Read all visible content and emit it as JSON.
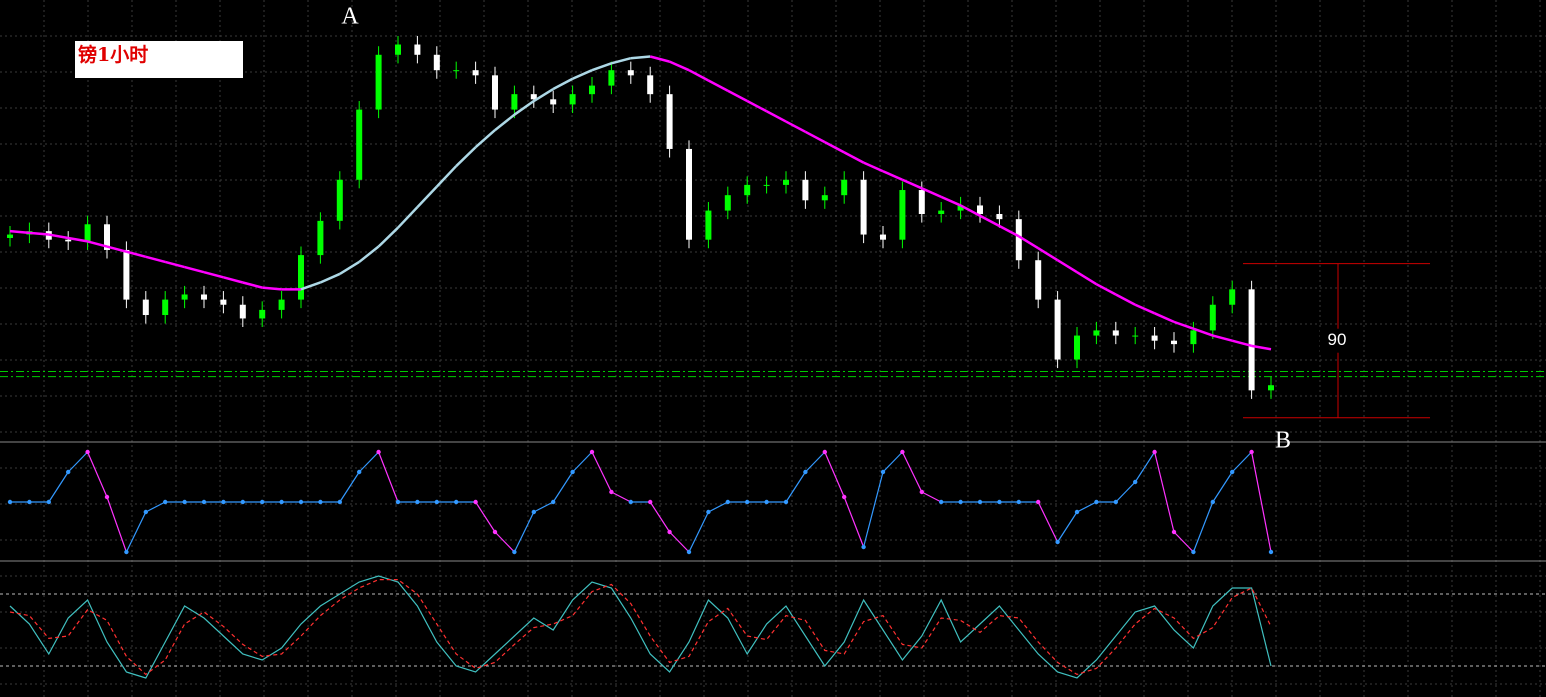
{
  "chart_data": [
    {
      "type": "candlestick",
      "title": "镑1小时",
      "annotations": [
        "A",
        "B"
      ],
      "up_color": "#00ff00",
      "down_color": "#ffffff",
      "ylim": [
        0,
        257
      ],
      "open": [
        118,
        120,
        122,
        117,
        116,
        126,
        111,
        82,
        73,
        82,
        85,
        82,
        79,
        71,
        76,
        82,
        108,
        128,
        152,
        193,
        225,
        231,
        225,
        216,
        216,
        213,
        193,
        202,
        199,
        196,
        202,
        207,
        216,
        213,
        202,
        170,
        117,
        134,
        143,
        149,
        149,
        152,
        140,
        143,
        152,
        120,
        117,
        146,
        132,
        134,
        137,
        132,
        129,
        105,
        82,
        47,
        61,
        64,
        61,
        61,
        58,
        56,
        64,
        79,
        88,
        29
      ],
      "high": [
        125,
        127,
        127,
        122,
        131,
        131,
        116,
        87,
        87,
        90,
        90,
        87,
        84,
        81,
        87,
        113,
        133,
        157,
        198,
        230,
        236,
        236,
        230,
        221,
        221,
        218,
        207,
        207,
        204,
        207,
        212,
        221,
        221,
        218,
        207,
        175,
        139,
        148,
        154,
        154,
        157,
        157,
        148,
        157,
        157,
        125,
        151,
        151,
        139,
        142,
        142,
        137,
        134,
        110,
        87,
        66,
        69,
        69,
        66,
        66,
        63,
        69,
        84,
        93,
        93,
        37
      ],
      "low": [
        113,
        115,
        112,
        111,
        111,
        106,
        77,
        68,
        68,
        77,
        77,
        74,
        66,
        66,
        71,
        77,
        103,
        123,
        147,
        188,
        220,
        220,
        211,
        211,
        208,
        188,
        188,
        194,
        191,
        191,
        197,
        202,
        208,
        197,
        165,
        112,
        112,
        129,
        138,
        144,
        144,
        135,
        135,
        138,
        115,
        112,
        112,
        127,
        127,
        129,
        127,
        124,
        100,
        77,
        42,
        42,
        56,
        56,
        56,
        53,
        51,
        51,
        59,
        74,
        24,
        24
      ],
      "close": [
        120,
        122,
        117,
        116,
        126,
        111,
        82,
        73,
        82,
        85,
        82,
        79,
        71,
        76,
        82,
        108,
        128,
        152,
        193,
        225,
        231,
        225,
        216,
        216,
        213,
        193,
        202,
        199,
        196,
        202,
        207,
        216,
        213,
        202,
        170,
        117,
        134,
        143,
        149,
        149,
        152,
        140,
        143,
        152,
        120,
        117,
        146,
        132,
        134,
        137,
        132,
        129,
        105,
        82,
        47,
        61,
        64,
        61,
        61,
        58,
        56,
        64,
        79,
        88,
        29,
        32
      ],
      "ma": {
        "color": "#ff00ff",
        "up_color": "#add8e6",
        "values": [
          122,
          121,
          120,
          118,
          116,
          113,
          110,
          107,
          104,
          101,
          98,
          95,
          92,
          89,
          88,
          88,
          92,
          97,
          104,
          113,
          124,
          136,
          148,
          160,
          171,
          181,
          190,
          198,
          205,
          211,
          216,
          220,
          223,
          224,
          221,
          216,
          210,
          204,
          198,
          192,
          186,
          180,
          174,
          168,
          162,
          157,
          152,
          147,
          142,
          137,
          131,
          125,
          119,
          112,
          105,
          98,
          91,
          85,
          79,
          74,
          69,
          65,
          61,
          58,
          55,
          53
        ]
      },
      "levels": [
        40,
        37
      ],
      "level_color": "#00cc00",
      "measure": {
        "label": "90",
        "from": 13,
        "to": 103,
        "color": "#cc0000"
      }
    },
    {
      "type": "step",
      "color": "#3399ff",
      "down_color": "#ff33ff",
      "ylim": [
        -110,
        110
      ],
      "values": [
        0,
        0,
        0,
        60,
        100,
        10,
        -100,
        -20,
        0,
        0,
        0,
        0,
        0,
        0,
        0,
        0,
        0,
        0,
        60,
        100,
        0,
        0,
        0,
        0,
        0,
        -60,
        -100,
        -20,
        0,
        60,
        100,
        20,
        0,
        0,
        -60,
        -100,
        -20,
        0,
        0,
        0,
        0,
        60,
        100,
        10,
        -90,
        60,
        100,
        20,
        0,
        0,
        0,
        0,
        0,
        0,
        -80,
        -20,
        0,
        0,
        40,
        100,
        -60,
        -100,
        0,
        60,
        100,
        -100
      ]
    },
    {
      "type": "line",
      "ylim": [
        0,
        100
      ],
      "levels": [
        80,
        20
      ],
      "series": [
        {
          "color": "#40c0c0",
          "values": [
            70,
            55,
            30,
            60,
            75,
            40,
            15,
            10,
            40,
            70,
            60,
            45,
            30,
            25,
            35,
            55,
            70,
            80,
            90,
            95,
            90,
            70,
            40,
            20,
            15,
            30,
            45,
            60,
            50,
            75,
            90,
            85,
            60,
            30,
            15,
            40,
            75,
            60,
            30,
            55,
            70,
            45,
            20,
            40,
            75,
            50,
            25,
            45,
            75,
            40,
            55,
            70,
            50,
            30,
            15,
            10,
            25,
            45,
            65,
            70,
            50,
            35,
            70,
            85,
            85,
            20
          ]
        },
        {
          "color": "#ff3030",
          "dashed": true,
          "values": [
            65,
            62,
            43,
            45,
            67,
            58,
            28,
            13,
            25,
            55,
            65,
            53,
            38,
            28,
            30,
            45,
            62,
            75,
            85,
            92,
            92,
            80,
            55,
            30,
            18,
            23,
            38,
            52,
            55,
            62,
            82,
            88,
            72,
            45,
            23,
            28,
            57,
            68,
            45,
            42,
            62,
            58,
            33,
            30,
            57,
            62,
            38,
            35,
            60,
            58,
            48,
            62,
            60,
            40,
            23,
            13,
            18,
            35,
            55,
            68,
            60,
            43,
            52,
            77,
            85,
            53
          ]
        }
      ]
    }
  ]
}
